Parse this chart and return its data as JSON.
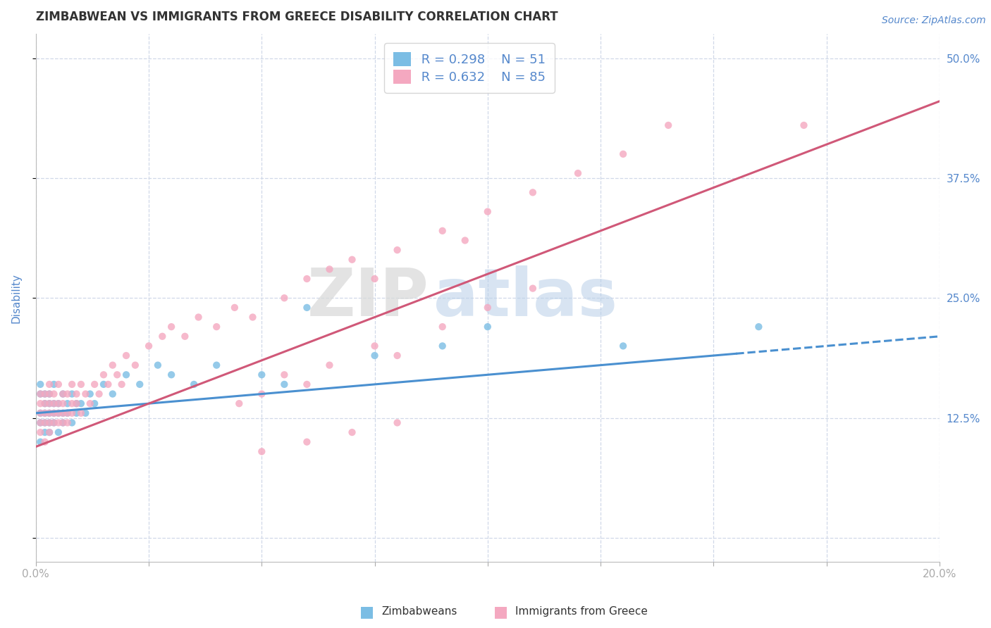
{
  "title": "ZIMBABWEAN VS IMMIGRANTS FROM GREECE DISABILITY CORRELATION CHART",
  "source_text": "Source: ZipAtlas.com",
  "ylabel": "Disability",
  "xlim": [
    0.0,
    0.2
  ],
  "ylim": [
    -0.025,
    0.525
  ],
  "xticks": [
    0.0,
    0.025,
    0.05,
    0.075,
    0.1,
    0.125,
    0.15,
    0.175,
    0.2
  ],
  "yticks": [
    0.0,
    0.125,
    0.25,
    0.375,
    0.5
  ],
  "ytick_labels_right": [
    "",
    "12.5%",
    "25.0%",
    "37.5%",
    "50.0%"
  ],
  "watermark_zip": "ZIP",
  "watermark_atlas": "atlas",
  "legend_r1": "R = 0.298",
  "legend_n1": "N = 51",
  "legend_r2": "R = 0.632",
  "legend_n2": "N = 85",
  "color_zimbabwe": "#7bbde4",
  "color_greece": "#f4a8c0",
  "color_trendline_zimbabwe": "#4a90d0",
  "color_trendline_greece": "#d05878",
  "background_color": "#ffffff",
  "grid_color": "#d0d8e8",
  "title_color": "#333333",
  "tick_label_color": "#5588cc",
  "trendline_zimbabwe_x0": 0.0,
  "trendline_zimbabwe_y0": 0.13,
  "trendline_zimbabwe_x1": 0.2,
  "trendline_zimbabwe_y1": 0.21,
  "trendline_zimbabwe_solid_end": 0.155,
  "trendline_greece_x0": 0.0,
  "trendline_greece_y0": 0.095,
  "trendline_greece_x1": 0.2,
  "trendline_greece_y1": 0.455,
  "zimbabwe_points_x": [
    0.001,
    0.001,
    0.001,
    0.001,
    0.001,
    0.002,
    0.002,
    0.002,
    0.002,
    0.002,
    0.003,
    0.003,
    0.003,
    0.003,
    0.003,
    0.004,
    0.004,
    0.004,
    0.004,
    0.005,
    0.005,
    0.005,
    0.006,
    0.006,
    0.006,
    0.007,
    0.007,
    0.008,
    0.008,
    0.009,
    0.009,
    0.01,
    0.011,
    0.012,
    0.013,
    0.015,
    0.017,
    0.02,
    0.023,
    0.027,
    0.03,
    0.035,
    0.04,
    0.05,
    0.055,
    0.06,
    0.075,
    0.09,
    0.1,
    0.13,
    0.16
  ],
  "zimbabwe_points_y": [
    0.13,
    0.15,
    0.12,
    0.16,
    0.1,
    0.14,
    0.13,
    0.15,
    0.12,
    0.11,
    0.13,
    0.14,
    0.15,
    0.11,
    0.12,
    0.13,
    0.14,
    0.12,
    0.16,
    0.13,
    0.14,
    0.11,
    0.13,
    0.15,
    0.12,
    0.14,
    0.13,
    0.15,
    0.12,
    0.14,
    0.13,
    0.14,
    0.13,
    0.15,
    0.14,
    0.16,
    0.15,
    0.17,
    0.16,
    0.18,
    0.17,
    0.16,
    0.18,
    0.17,
    0.16,
    0.24,
    0.19,
    0.2,
    0.22,
    0.2,
    0.22
  ],
  "greece_points_x": [
    0.001,
    0.001,
    0.001,
    0.001,
    0.001,
    0.002,
    0.002,
    0.002,
    0.002,
    0.002,
    0.003,
    0.003,
    0.003,
    0.003,
    0.003,
    0.003,
    0.004,
    0.004,
    0.004,
    0.004,
    0.005,
    0.005,
    0.005,
    0.005,
    0.006,
    0.006,
    0.006,
    0.006,
    0.007,
    0.007,
    0.007,
    0.008,
    0.008,
    0.008,
    0.009,
    0.009,
    0.01,
    0.01,
    0.011,
    0.012,
    0.013,
    0.014,
    0.015,
    0.016,
    0.017,
    0.018,
    0.019,
    0.02,
    0.022,
    0.025,
    0.028,
    0.03,
    0.033,
    0.036,
    0.04,
    0.044,
    0.048,
    0.055,
    0.06,
    0.065,
    0.07,
    0.075,
    0.08,
    0.09,
    0.095,
    0.1,
    0.11,
    0.12,
    0.13,
    0.14,
    0.045,
    0.05,
    0.055,
    0.06,
    0.065,
    0.075,
    0.08,
    0.09,
    0.1,
    0.11,
    0.05,
    0.06,
    0.07,
    0.08,
    0.17
  ],
  "greece_points_y": [
    0.13,
    0.12,
    0.14,
    0.11,
    0.15,
    0.13,
    0.12,
    0.14,
    0.1,
    0.15,
    0.12,
    0.14,
    0.13,
    0.15,
    0.11,
    0.16,
    0.13,
    0.14,
    0.12,
    0.15,
    0.13,
    0.14,
    0.12,
    0.16,
    0.13,
    0.15,
    0.12,
    0.14,
    0.13,
    0.15,
    0.12,
    0.14,
    0.13,
    0.16,
    0.14,
    0.15,
    0.13,
    0.16,
    0.15,
    0.14,
    0.16,
    0.15,
    0.17,
    0.16,
    0.18,
    0.17,
    0.16,
    0.19,
    0.18,
    0.2,
    0.21,
    0.22,
    0.21,
    0.23,
    0.22,
    0.24,
    0.23,
    0.25,
    0.27,
    0.28,
    0.29,
    0.27,
    0.3,
    0.32,
    0.31,
    0.34,
    0.36,
    0.38,
    0.4,
    0.43,
    0.14,
    0.15,
    0.17,
    0.16,
    0.18,
    0.2,
    0.19,
    0.22,
    0.24,
    0.26,
    0.09,
    0.1,
    0.11,
    0.12,
    0.43
  ]
}
